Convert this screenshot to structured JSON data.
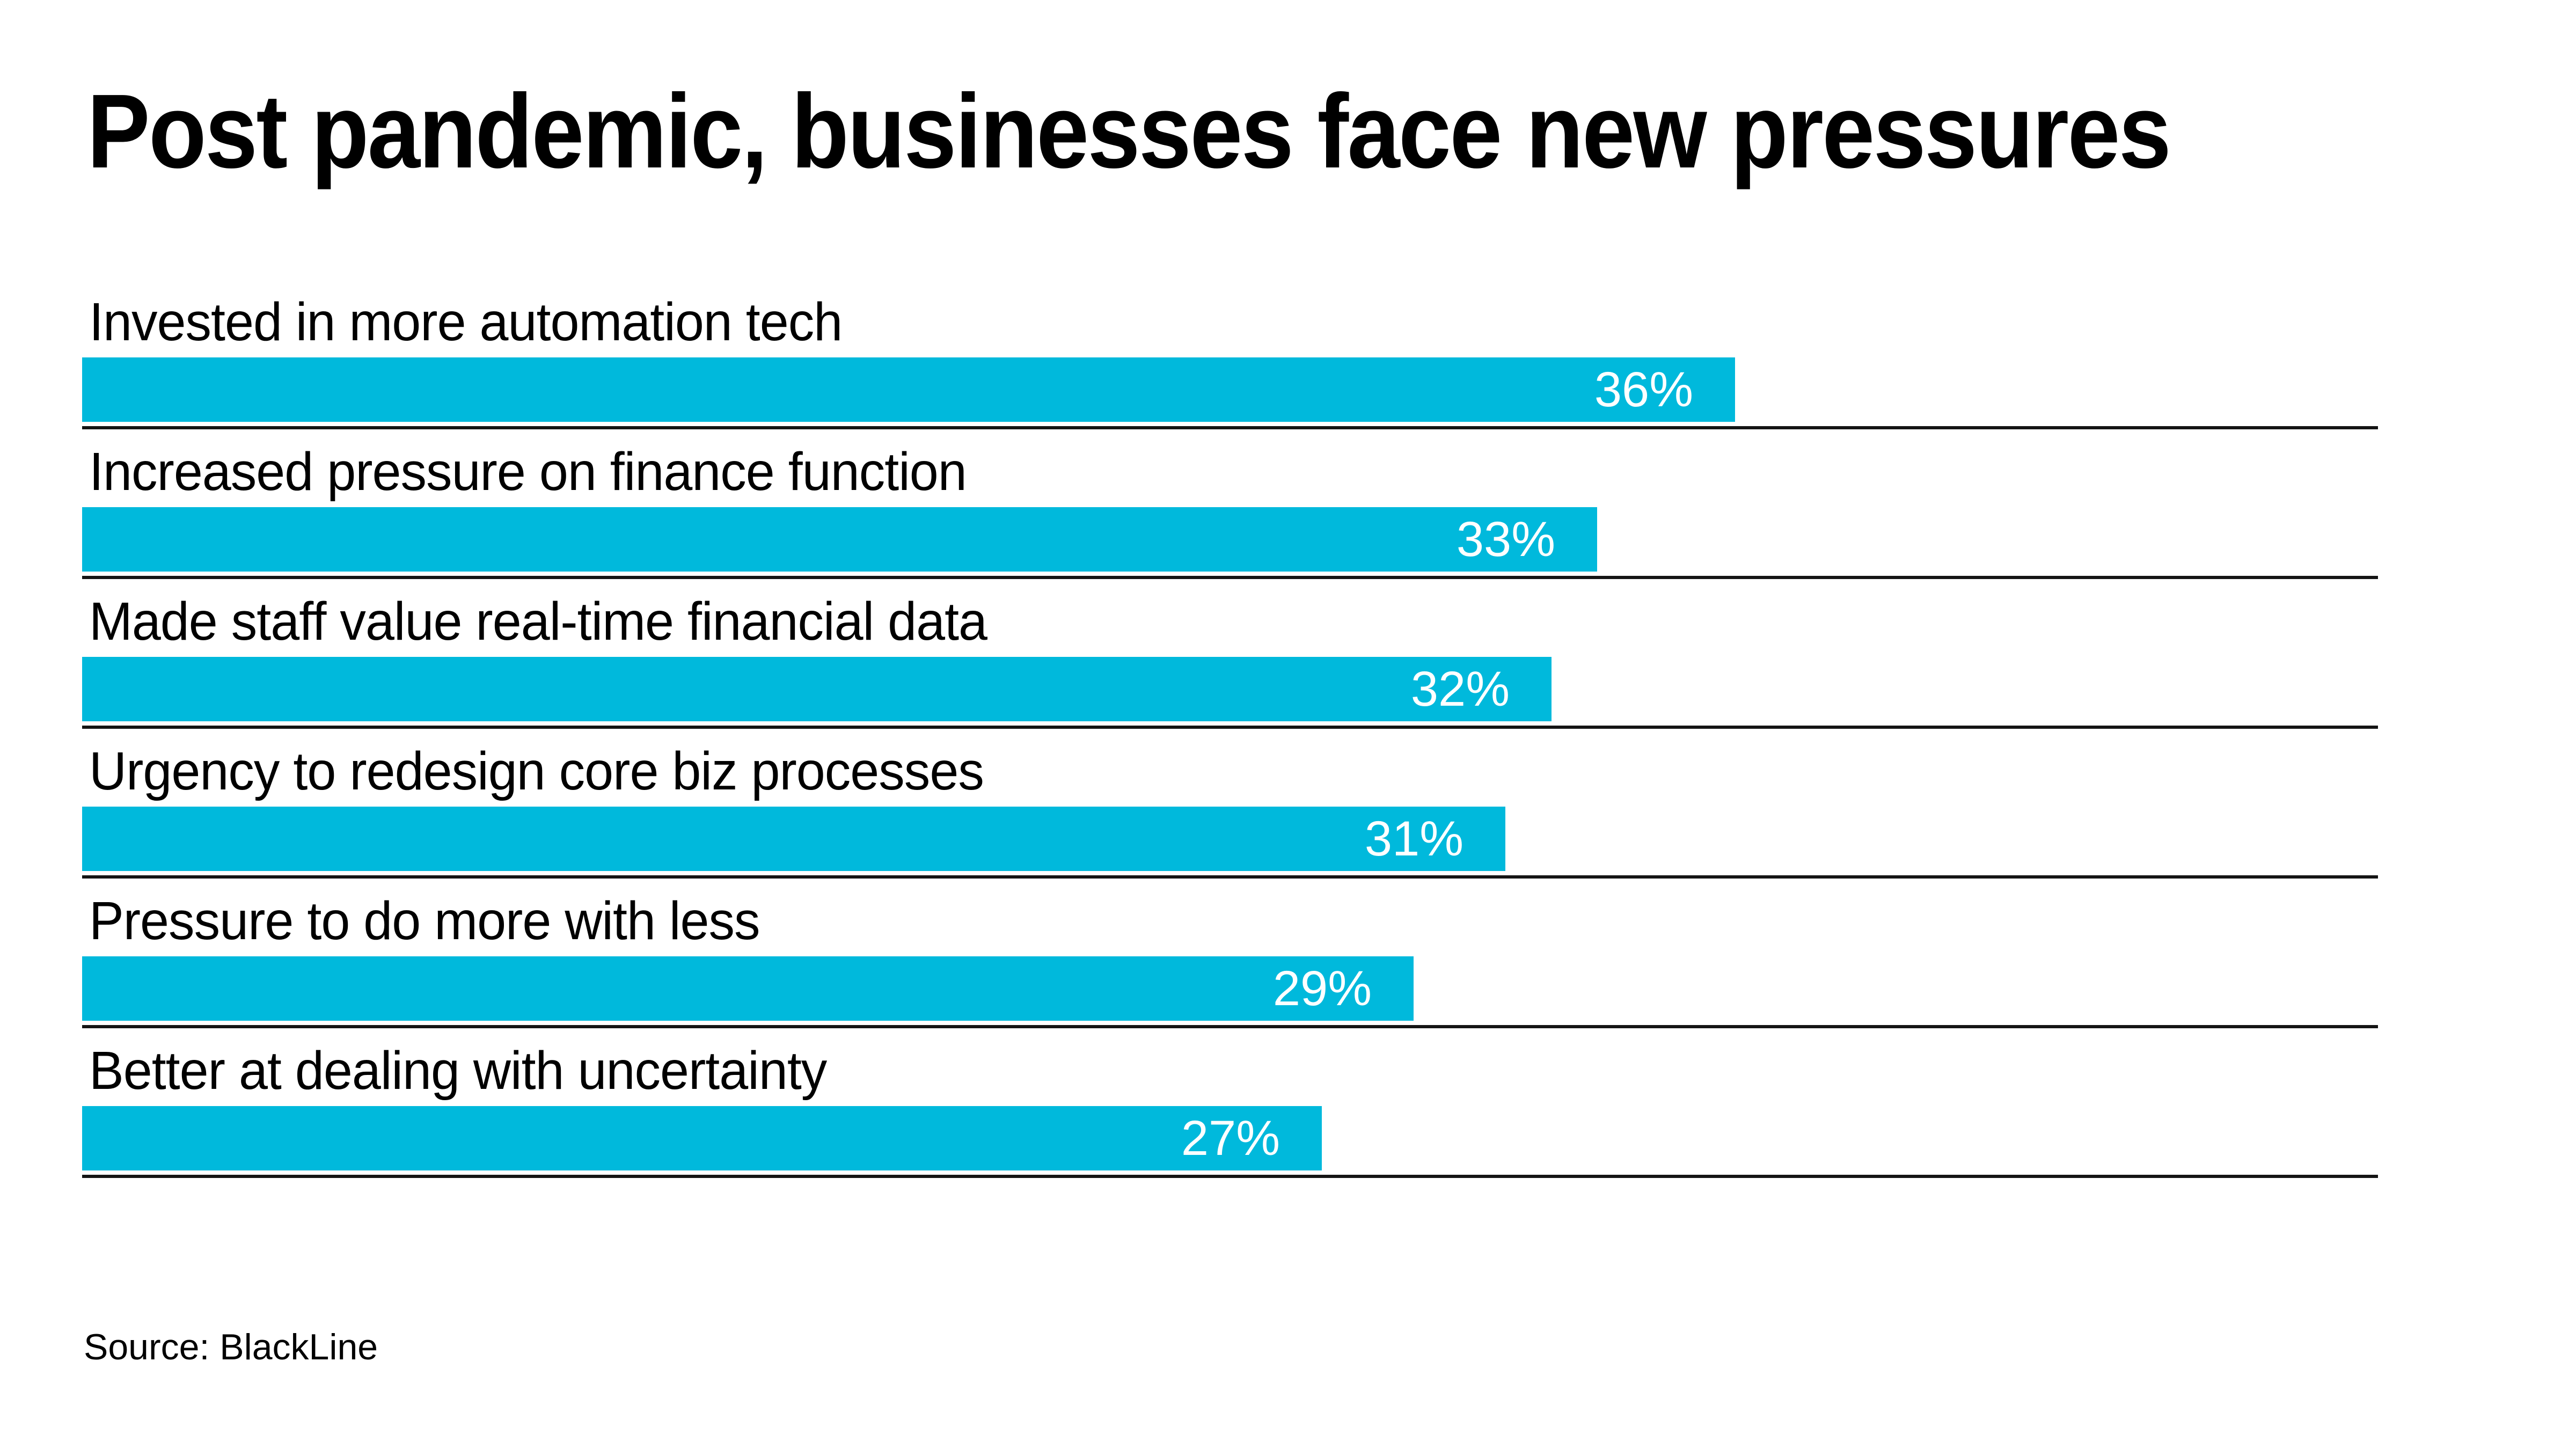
{
  "header": {
    "title": "Post pandemic, businesses face new pressures"
  },
  "chart_data": {
    "type": "bar",
    "orientation": "horizontal",
    "title": "Post pandemic, businesses face new pressures",
    "categories": [
      "Invested in more automation tech",
      "Increased pressure on finance function",
      "Made staff value real-time financial data",
      "Urgency to redesign core biz processes",
      "Pressure to do more with less",
      "Better at dealing with uncertainty"
    ],
    "values": [
      36,
      33,
      32,
      31,
      29,
      27
    ],
    "value_labels": [
      "36%",
      "33%",
      "32%",
      "31%",
      "29%",
      "27%"
    ],
    "unit": "%",
    "xlim": [
      0,
      50
    ],
    "grid": "horizontal-rules-under-each-bar",
    "legend": "none",
    "bar_color": "#00b9dc",
    "value_label_color": "#ffffff",
    "rule_color": "#141414",
    "background_color": "#ffffff",
    "source": "Source: BlackLine"
  },
  "footer": {
    "source_label": "Source: BlackLine"
  }
}
